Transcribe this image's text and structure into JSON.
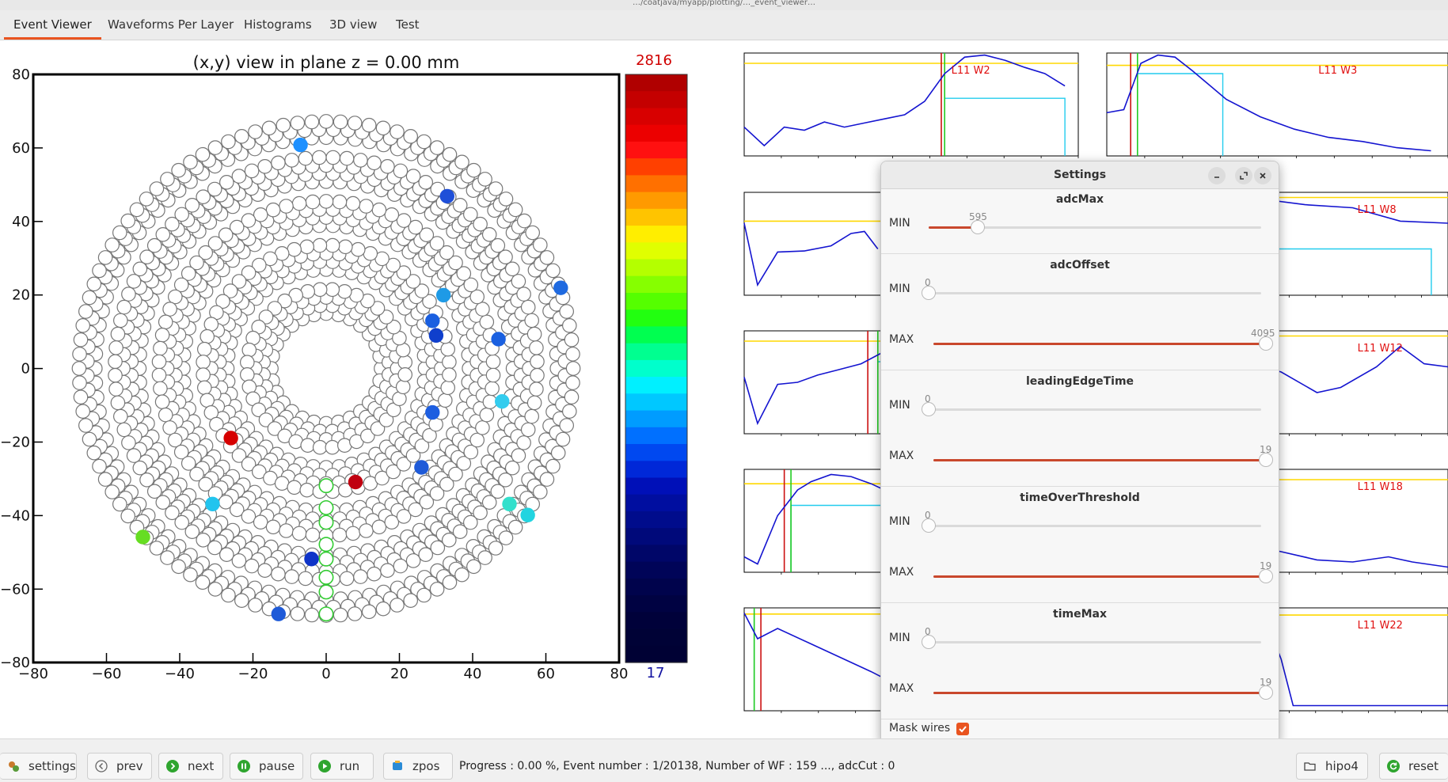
{
  "window": {
    "title": "…/coatjava/myapp/plotting/…_event_viewer…"
  },
  "tabs": [
    {
      "label": "Event Viewer",
      "active": true
    },
    {
      "label": "Waveforms Per Layer",
      "active": false
    },
    {
      "label": "Histograms",
      "active": false
    },
    {
      "label": "3D view",
      "active": false
    },
    {
      "label": "Test",
      "active": false
    }
  ],
  "plot": {
    "title": "(x,y) view in plane z = 0.00 mm",
    "x_ticks": [
      "−80",
      "−60",
      "−40",
      "−20",
      "0",
      "20",
      "40",
      "60",
      "80"
    ],
    "y_ticks": [
      "80",
      "60",
      "40",
      "20",
      "0",
      "−20",
      "−40",
      "−60",
      "−80"
    ],
    "colorbar_max": "2816",
    "colorbar_min": "17"
  },
  "waveforms": {
    "labels": [
      "L11 W2",
      "L11 W3",
      "L11 W8",
      "L11 W12",
      "L11 W18",
      "L11 W22"
    ]
  },
  "settings": {
    "title": "Settings",
    "sections": [
      {
        "name": "adcMax",
        "rows": [
          {
            "label": "MIN",
            "value": "595"
          }
        ]
      },
      {
        "name": "adcOffset",
        "rows": [
          {
            "label": "MIN",
            "value": "0"
          },
          {
            "label": "MAX",
            "value": "4095"
          }
        ]
      },
      {
        "name": "leadingEdgeTime",
        "rows": [
          {
            "label": "MIN",
            "value": "0"
          },
          {
            "label": "MAX",
            "value": "19"
          }
        ]
      },
      {
        "name": "timeOverThreshold",
        "rows": [
          {
            "label": "MIN",
            "value": "0"
          },
          {
            "label": "MAX",
            "value": "19"
          }
        ]
      },
      {
        "name": "timeMax",
        "rows": [
          {
            "label": "MIN",
            "value": "0"
          },
          {
            "label": "MAX",
            "value": "19"
          }
        ]
      }
    ],
    "mask_label": "Mask wires",
    "mask_checked": true
  },
  "toolbar": {
    "settings": "settings",
    "prev": "prev",
    "next": "next",
    "pause": "pause",
    "run": "run",
    "zpos": "zpos",
    "hipo4": "hipo4",
    "reset": "reset"
  },
  "status": "Progress : 0.00 %, Event number : 1/20138, Number of WF : 159 ..., adcCut : 0",
  "colors": {
    "accent": "#e95420",
    "green": "#2fa52f"
  }
}
